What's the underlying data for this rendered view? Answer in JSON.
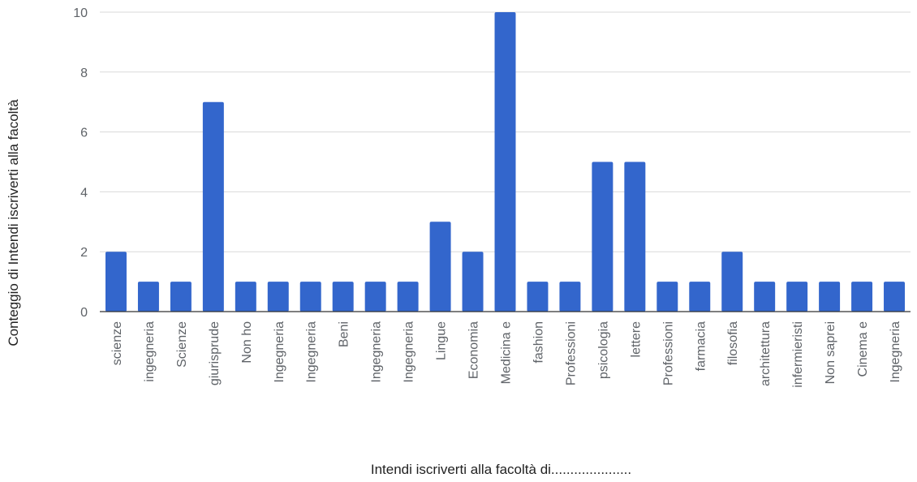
{
  "chart_data": {
    "type": "bar",
    "title": "",
    "xlabel": "Intendi iscriverti alla facoltà di.....................",
    "ylabel": "Conteggio di Intendi iscriverti alla facoltà",
    "ylim": [
      0,
      10
    ],
    "yticks": [
      0,
      2,
      4,
      6,
      8,
      10
    ],
    "grid": true,
    "legend": "none",
    "bar_color": "#3366cc",
    "categories": [
      "scienze",
      "ingegneria",
      "Scienze",
      "giurisprude",
      "Non ho",
      "Ingegneria",
      "Ingegneria",
      "Beni",
      "Ingegneria",
      "Ingegneria",
      "Lingue",
      "Economia",
      "Medicina e",
      "fashion",
      "Professioni",
      "psicologia",
      "lettere",
      "Professioni",
      "farmacia",
      "filosofia",
      "architettura",
      "infermieristi",
      "Non saprei",
      "Cinema e",
      "Ingegneria"
    ],
    "values": [
      2,
      1,
      1,
      7,
      1,
      1,
      1,
      1,
      1,
      1,
      3,
      2,
      10,
      1,
      1,
      5,
      5,
      1,
      1,
      2,
      1,
      1,
      1,
      1,
      1
    ]
  }
}
